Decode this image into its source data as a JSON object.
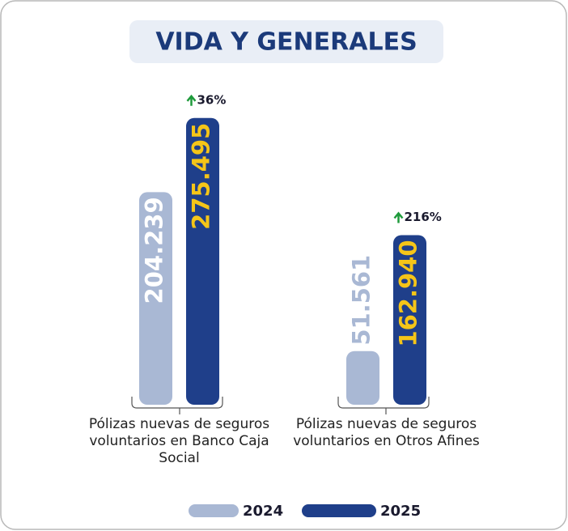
{
  "chart_data": {
    "type": "bar",
    "title": "VIDA Y GENERALES",
    "categories": [
      "Pólizas nuevas de seguros voluntarios en Banco Caja Social",
      "Pólizas nuevas de seguros voluntarios en Otros Afines"
    ],
    "series": [
      {
        "name": "2024",
        "color": "#a9b8d4",
        "values": [
          204239,
          51561
        ],
        "value_labels": [
          "204.239",
          "51.561"
        ]
      },
      {
        "name": "2025",
        "color": "#1f3f8a",
        "values": [
          275495,
          162940
        ],
        "value_labels": [
          "275.495",
          "162.940"
        ]
      }
    ],
    "annotations": [
      "36%",
      "216%"
    ],
    "ylim": [
      0,
      280000
    ]
  }
}
